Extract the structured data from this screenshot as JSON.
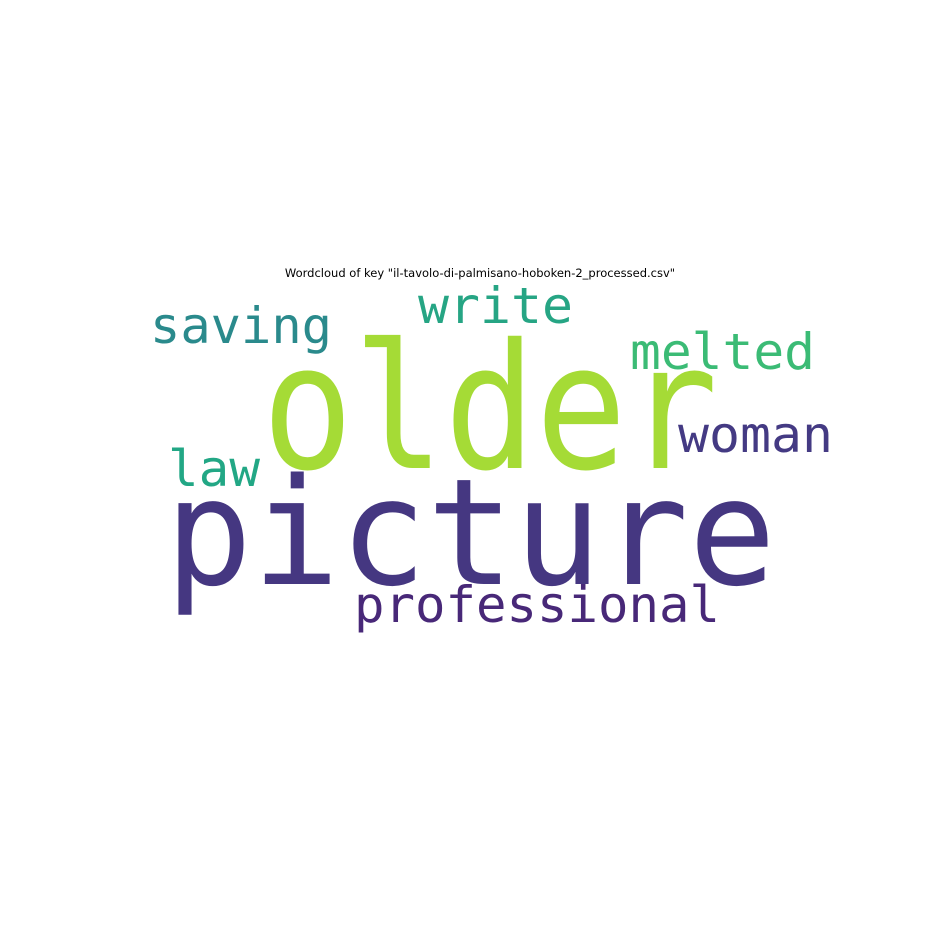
{
  "chart_data": {
    "type": "wordcloud",
    "title": "Wordcloud of key \"il-tavolo-di-palmisano-hoboken-2_processed.csv\"",
    "words": [
      {
        "text": "older",
        "color": "#a5db36"
      },
      {
        "text": "picture",
        "color": "#453781"
      },
      {
        "text": "professional",
        "color": "#482878"
      },
      {
        "text": "saving",
        "color": "#2a8a8c"
      },
      {
        "text": "write",
        "color": "#26a584"
      },
      {
        "text": "melted",
        "color": "#3bbb75"
      },
      {
        "text": "woman",
        "color": "#443a83"
      },
      {
        "text": "law",
        "color": "#22a785"
      }
    ]
  }
}
